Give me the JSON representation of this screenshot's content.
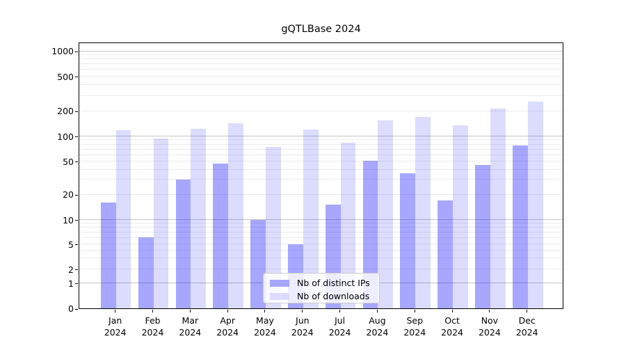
{
  "title": "gQTLBase 2024",
  "legend": {
    "position": "lower center",
    "items": [
      {
        "label": "Nb of distinct IPs",
        "swatch_color": "#a6a6ff"
      },
      {
        "label": "Nb of downloads",
        "swatch_color": "#dbdbff"
      }
    ]
  },
  "chart_data": {
    "type": "bar",
    "title": "gQTLBase 2024",
    "categories": [
      "Jan",
      "Feb",
      "Mar",
      "Apr",
      "May",
      "Jun",
      "Jul",
      "Aug",
      "Sep",
      "Oct",
      "Nov",
      "Dec"
    ],
    "category_year": "2024",
    "series": [
      {
        "name": "Nb of distinct IPs",
        "color": "rgba(0,0,255,0.345)",
        "legend_color": "#a6a6ff",
        "values": [
          16,
          6,
          30,
          47,
          10,
          5,
          15,
          51,
          36,
          17,
          45,
          77
        ]
      },
      {
        "name": "Nb of downloads",
        "color": "rgba(0,0,255,0.137)",
        "legend_color": "#dbdbff",
        "values": [
          118,
          94,
          123,
          141,
          74,
          121,
          83,
          154,
          169,
          134,
          210,
          255
        ]
      }
    ],
    "yticks": [
      0,
      1,
      2,
      5,
      10,
      20,
      50,
      100,
      200,
      500,
      1000
    ],
    "yscale": "log",
    "ylim": [
      0,
      1200
    ],
    "xlabel": "",
    "ylabel": "",
    "grid": true,
    "legend_position": "lower center"
  }
}
